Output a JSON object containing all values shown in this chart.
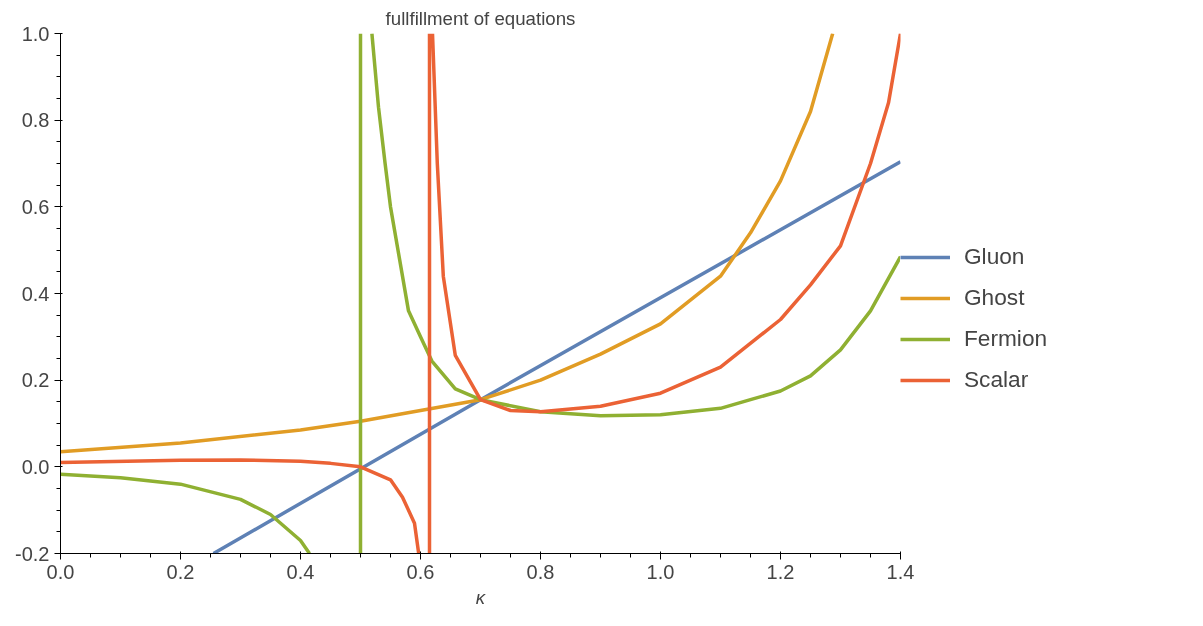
{
  "chart_data": {
    "type": "line",
    "title": "fullfillment of equations",
    "xlabel": "κ",
    "xlim": [
      0,
      1.4
    ],
    "ylim": [
      -0.2,
      1.0
    ],
    "xticks": [
      {
        "value": 0,
        "label": "0.0"
      },
      0.2,
      0.4,
      0.6,
      0.8,
      {
        "value": 1,
        "label": "1.0"
      },
      1.2,
      1.4
    ],
    "yticks": [
      -0.2,
      {
        "value": 0,
        "label": "0.0"
      },
      0.2,
      0.4,
      0.6,
      0.8,
      {
        "value": 1,
        "label": "1.0"
      }
    ],
    "grid": false,
    "legend": "right",
    "marker": "none",
    "line_style": "solid",
    "series": [
      {
        "name": "Gluon",
        "color": "#5e81b5",
        "x": [
          0.255,
          0.7,
          1.4
        ],
        "values": [
          -0.2,
          0.155,
          0.704
        ]
      },
      {
        "name": "Ghost",
        "color": "#e19c24",
        "x": [
          0,
          0.2,
          0.4,
          0.5,
          0.6,
          0.7,
          0.8,
          0.9,
          1.0,
          1.1,
          1.15,
          1.2,
          1.25,
          1.287
        ],
        "values": [
          0.035,
          0.055,
          0.085,
          0.105,
          0.13,
          0.155,
          0.2,
          0.26,
          0.33,
          0.44,
          0.54,
          0.66,
          0.82,
          1.0
        ]
      },
      {
        "name": "Fermion",
        "color": "#8fb032",
        "x": [
          0,
          0.1,
          0.2,
          0.3,
          0.35,
          0.4,
          0.415,
          null,
          0.5,
          0.5,
          null,
          0.519,
          0.53,
          0.541,
          0.55,
          0.58,
          0.6,
          0.619,
          0.658,
          0.7,
          0.8,
          0.9,
          1.0,
          1.1,
          1.15,
          1.2,
          1.25,
          1.3,
          1.35,
          1.4
        ],
        "values": [
          -0.017,
          -0.025,
          -0.04,
          -0.075,
          -0.11,
          -0.17,
          -0.2,
          null,
          -0.2,
          1.0,
          null,
          1.0,
          0.83,
          0.7,
          0.6,
          0.36,
          0.3,
          0.244,
          0.18,
          0.155,
          0.127,
          0.118,
          0.12,
          0.135,
          0.155,
          0.175,
          0.21,
          0.27,
          0.36,
          0.485
        ]
      },
      {
        "name": "Scalar",
        "color": "#eb6235",
        "x": [
          0,
          0.2,
          0.3,
          0.4,
          0.45,
          0.5,
          0.55,
          0.57,
          0.59,
          0.597,
          null,
          0.615,
          0.615,
          null,
          0.62,
          0.628,
          0.638,
          0.658,
          0.7,
          0.75,
          0.8,
          0.9,
          1.0,
          1.1,
          1.2,
          1.25,
          1.3,
          1.35,
          1.38,
          1.4
        ],
        "values": [
          0.01,
          0.015,
          0.016,
          0.013,
          0.008,
          0.0,
          -0.03,
          -0.07,
          -0.13,
          -0.2,
          null,
          -0.2,
          1.0,
          null,
          1.0,
          0.7,
          0.44,
          0.257,
          0.155,
          0.13,
          0.127,
          0.14,
          0.17,
          0.23,
          0.34,
          0.42,
          0.51,
          0.7,
          0.84,
          1.0
        ]
      }
    ]
  }
}
